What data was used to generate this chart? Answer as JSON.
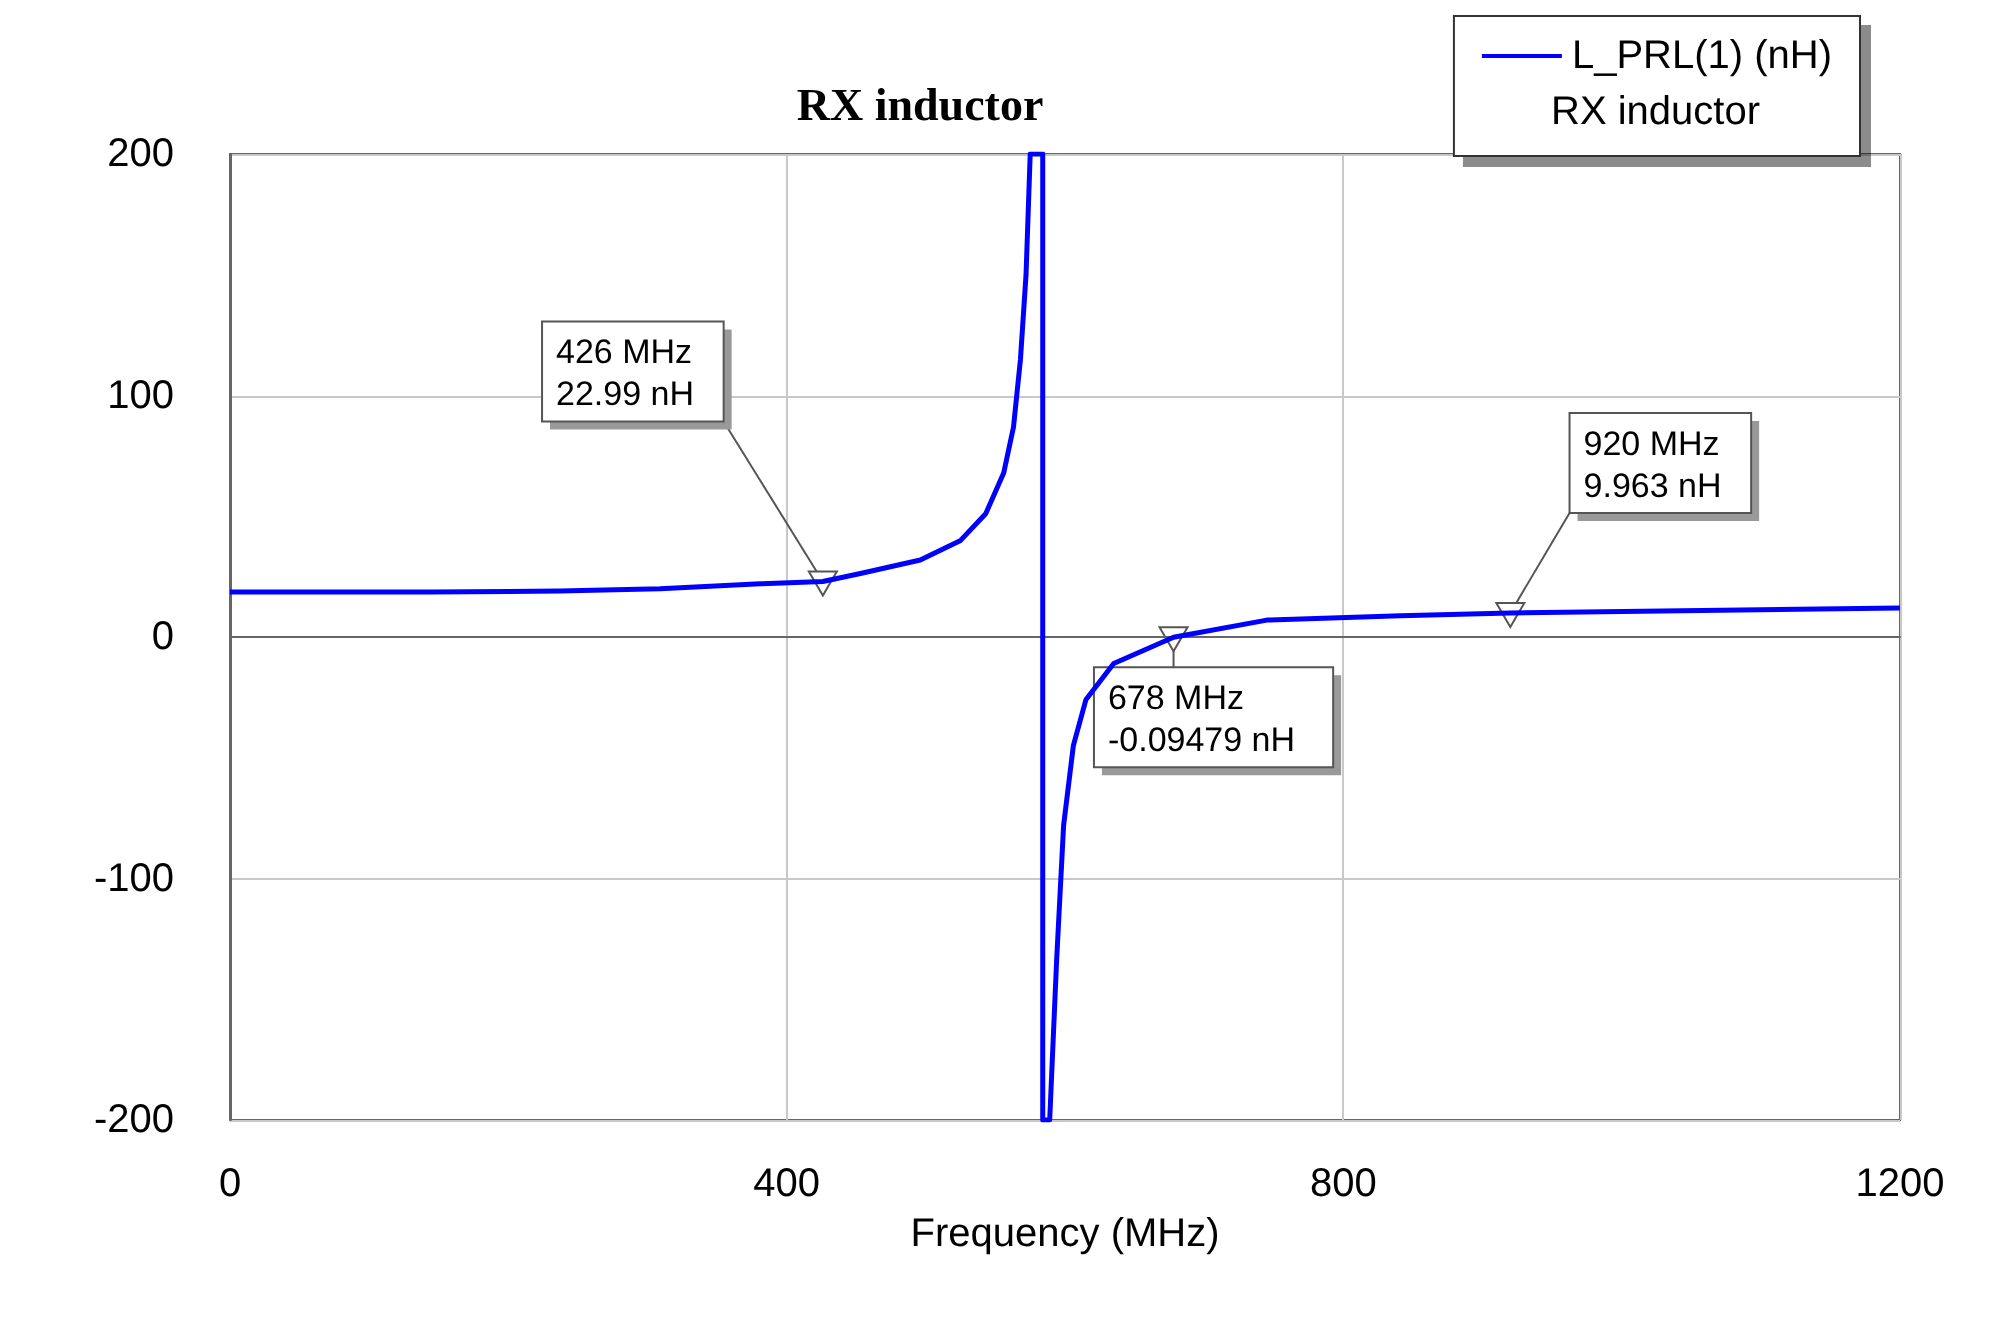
{
  "chart_data": {
    "type": "line",
    "title": "RX inductor",
    "xlabel": "Frequency (MHz)",
    "legend_title": "RX inductor",
    "xlim": [
      0,
      1200
    ],
    "xticks": [
      0,
      400,
      800,
      1200
    ],
    "ylim": [
      -200,
      200
    ],
    "yticks": [
      -200,
      -100,
      0,
      100,
      200
    ],
    "grid": true,
    "legend": "top right",
    "marker": "none",
    "line_style": "solid",
    "series": [
      {
        "name": "L_PRL(1) (nH)",
        "color": "#0000ff",
        "x": [
          0,
          144,
          237,
          309,
          381,
          426,
          453,
          496,
          525,
          543,
          556,
          563,
          568,
          572,
          575,
          584,
          584,
          589,
          594,
          599,
          606,
          615,
          635,
          678,
          745,
          841,
          920,
          1200
        ],
        "values": [
          18.6,
          18.6,
          19,
          20,
          22,
          22.99,
          26.3,
          31.9,
          40,
          51,
          68,
          87,
          115,
          150,
          200,
          200,
          -200,
          -200,
          -133.7,
          -78,
          -45,
          -26,
          -11,
          -0.09479,
          7,
          8.8,
          9.963,
          12
        ]
      }
    ],
    "annotations": [
      {
        "text": "426 MHz\n22.99 nH",
        "x": 426,
        "y": 22.99
      },
      {
        "text": "678 MHz\n-0.09479 nH",
        "x": 678,
        "y": -0.09479
      },
      {
        "text": "920 MHz\n9.963 nH",
        "x": 920,
        "y": 9.963
      }
    ]
  }
}
